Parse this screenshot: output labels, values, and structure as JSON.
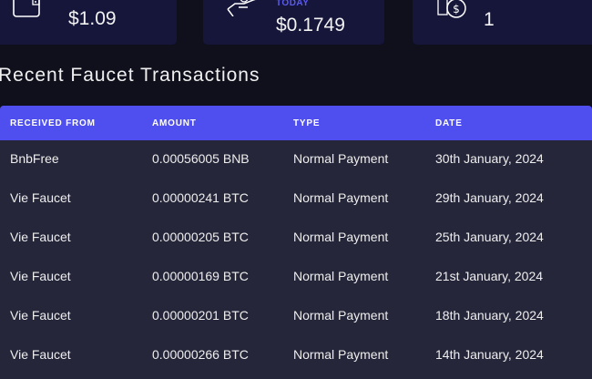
{
  "cards": [
    {
      "icon": "wallet-icon",
      "value": "$1.09"
    },
    {
      "icon": "hand-coin-icon",
      "label": "TODAY",
      "value": "$0.1749"
    },
    {
      "icon": "coins-stack-icon",
      "value": "1"
    }
  ],
  "section_title": "Recent Faucet Transactions",
  "table": {
    "headers": [
      "RECEIVED FROM",
      "AMOUNT",
      "TYPE",
      "DATE"
    ],
    "rows": [
      [
        "BnbFree",
        "0.00056005 BNB",
        "Normal Payment",
        "30th January, 2024"
      ],
      [
        "Vie Faucet",
        "0.00000241 BTC",
        "Normal Payment",
        "29th January, 2024"
      ],
      [
        "Vie Faucet",
        "0.00000205 BTC",
        "Normal Payment",
        "25th January, 2024"
      ],
      [
        "Vie Faucet",
        "0.00000169 BTC",
        "Normal Payment",
        "21st January, 2024"
      ],
      [
        "Vie Faucet",
        "0.00000201 BTC",
        "Normal Payment",
        "18th January, 2024"
      ],
      [
        "Vie Faucet",
        "0.00000266 BTC",
        "Normal Payment",
        "14th January, 2024"
      ]
    ]
  },
  "colors": {
    "background": "#0f101c",
    "card": "#15163a",
    "accent": "#4f4ff0",
    "table": "#25263a"
  }
}
